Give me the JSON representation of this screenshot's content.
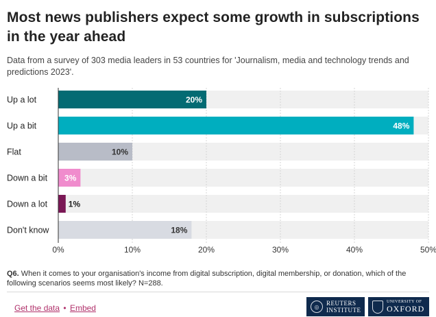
{
  "header": {
    "title": "Most news publishers expect some growth in subscriptions in the year ahead",
    "subtitle": "Data from a survey of 303 media leaders in 53 countries for 'Journalism, media and technology trends and predictions 2023'."
  },
  "chart_data": {
    "type": "bar",
    "orientation": "horizontal",
    "categories": [
      "Up a lot",
      "Up a bit",
      "Flat",
      "Down a bit",
      "Down a lot",
      "Don't know"
    ],
    "values": [
      20,
      48,
      10,
      3,
      1,
      18
    ],
    "value_labels": [
      "20%",
      "48%",
      "10%",
      "3%",
      "1%",
      "18%"
    ],
    "colors": [
      "#046b73",
      "#00aebf",
      "#b8bcc7",
      "#f08ccd",
      "#7a1755",
      "#d8dbe2"
    ],
    "label_colors": [
      "#ffffff",
      "#ffffff",
      "#333333",
      "#ffffff",
      "#222222",
      "#333333"
    ],
    "xlim": [
      0,
      50
    ],
    "xticks": [
      0,
      10,
      20,
      30,
      40,
      50
    ],
    "xtick_labels": [
      "0%",
      "10%",
      "20%",
      "30%",
      "40%",
      "50%"
    ],
    "track_color": "#f0f0f0",
    "xlabel": "",
    "ylabel": ""
  },
  "footnote": {
    "label": "Q6.",
    "text": " When it comes to your organisation's income from digital subscription, digital membership, or donation, which of the following scenarios seems most likely? N=288."
  },
  "links": {
    "data_label": "Get the data",
    "separator": "•",
    "embed_label": "Embed"
  },
  "logos": {
    "reuters_line1": "REUTERS",
    "reuters_line2": "INSTITUTE",
    "oxford_line1": "UNIVERSITY OF",
    "oxford_line2": "OXFORD"
  }
}
